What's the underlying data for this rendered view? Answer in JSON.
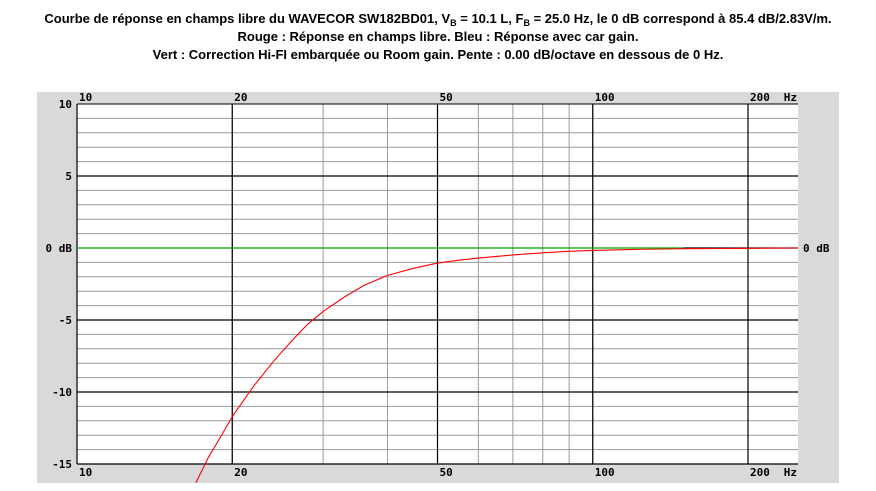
{
  "title": {
    "line1_pre": "Courbe de réponse en champs libre du WAVECOR SW182BD01, V",
    "vb_sub": "B",
    "line1_mid1": " = 10.1 L, F",
    "fb_sub": "B",
    "line1_mid2": " = 25.0 Hz, le 0 dB correspond à 85.4 dB/2.83V/m.",
    "line2": "Rouge : Réponse en champs libre. Bleu : Réponse avec car gain.",
    "line3": "Vert : Correction Hi-FI embarquée ou Room gain. Pente : 0.00 dB/octave en dessous de 0 Hz."
  },
  "chart_data": {
    "type": "line",
    "x_scale": "log",
    "xlim": [
      10,
      250
    ],
    "ylim": [
      -15,
      10
    ],
    "x_ticks": [
      {
        "value": 10,
        "label": "10"
      },
      {
        "value": 20,
        "label": "20"
      },
      {
        "value": 50,
        "label": "50"
      },
      {
        "value": 100,
        "label": "100"
      },
      {
        "value": 200,
        "label": "200"
      }
    ],
    "x_unit_label": "Hz",
    "y_ticks": [
      {
        "value": 10,
        "label": "10"
      },
      {
        "value": 5,
        "label": "5"
      },
      {
        "value": 0,
        "label": "0 dB"
      },
      {
        "value": -5,
        "label": "-5"
      },
      {
        "value": -10,
        "label": "-10"
      },
      {
        "value": -15,
        "label": "-15"
      }
    ],
    "right_label": {
      "value": 0,
      "label": "0 dB"
    },
    "grid": true,
    "series": [
      {
        "color": "#00cc00",
        "x": [
          10,
          150
        ],
        "y": [
          0,
          0
        ]
      },
      {
        "color": "#ff0000",
        "x": [
          17,
          18,
          19,
          20,
          22,
          24,
          26,
          28,
          30,
          33,
          36,
          40,
          45,
          50,
          55,
          60,
          70,
          80,
          90,
          100,
          120,
          150,
          200,
          250
        ],
        "y": [
          -16.3,
          -14.5,
          -13.1,
          -11.7,
          -9.6,
          -7.9,
          -6.5,
          -5.3,
          -4.4,
          -3.4,
          -2.6,
          -1.9,
          -1.4,
          -1.05,
          -0.85,
          -0.7,
          -0.48,
          -0.33,
          -0.23,
          -0.17,
          -0.1,
          -0.05,
          -0.02,
          0
        ]
      }
    ]
  }
}
